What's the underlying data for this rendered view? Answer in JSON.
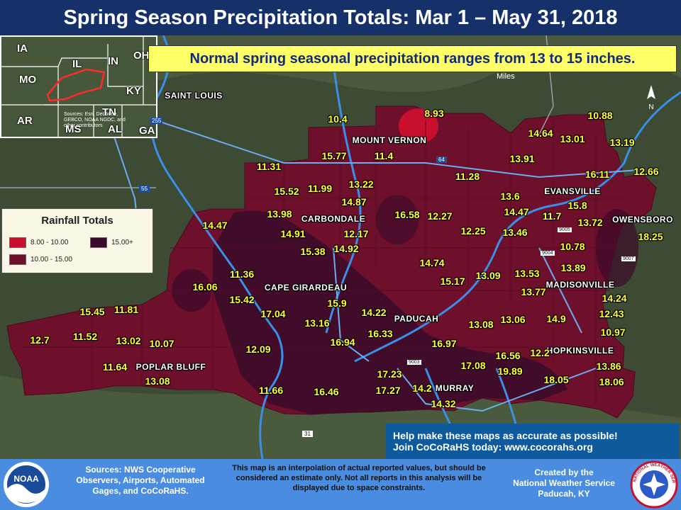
{
  "title": "Spring Season Precipitation Totals: Mar 1 – May 31, 2018",
  "normal_note": "Normal spring seasonal precipitation ranges from 13 to 15 inches.",
  "scale_label": "Miles",
  "inset": {
    "states": [
      "IA",
      "IL",
      "IN",
      "OH",
      "MO",
      "KY",
      "AR",
      "TN",
      "MS",
      "AL",
      "GA"
    ],
    "source": "Sources: Esri, DeLorme, GEBCO, NOAA NGDC, and other contributors"
  },
  "cities": [
    "SAINT LOUIS",
    "MOUNT VERNON",
    "CARBONDALE",
    "CAPE GIRARDEAU",
    "POPLAR BLUFF",
    "PADUCAH",
    "MURRAY",
    "EVANSVILLE",
    "OWENSBORO",
    "MADISONVILLE",
    "HOPKINSVILLE"
  ],
  "highway_shields": [
    "255",
    "55",
    "64",
    "9005",
    "9004",
    "9007",
    "9003",
    "31"
  ],
  "precip_values": [
    "8.93",
    "10.4",
    "10.88",
    "14.64",
    "13.01",
    "13.19",
    "15.77",
    "11.4",
    "13.91",
    "11.31",
    "11.28",
    "16.11",
    "12.66",
    "15.52",
    "11.99",
    "13.22",
    "13.6",
    "14.87",
    "15.8",
    "13.98",
    "16.58",
    "12.27",
    "14.47",
    "11.7",
    "14.47",
    "14.91",
    "12.17",
    "13.72",
    "18.25",
    "12.25",
    "13.46",
    "15.38",
    "14.92",
    "10.78",
    "14.74",
    "13.09",
    "13.53",
    "13.89",
    "11.36",
    "15.17",
    "16.06",
    "13.77",
    "15.42",
    "15.9",
    "14.24",
    "17.04",
    "14.22",
    "15.45",
    "11.81",
    "13.16",
    "13.06",
    "12.43",
    "16.33",
    "14.9",
    "10.97",
    "12.7",
    "11.52",
    "13.02",
    "10.07",
    "16.94",
    "16.97",
    "13.08",
    "12.09",
    "16.56",
    "12.2",
    "11.64",
    "13.08",
    "17.08",
    "19.89",
    "13.86",
    "17.23",
    "18.05",
    "18.06",
    "11.66",
    "16.46",
    "17.27",
    "14.2",
    "14.32"
  ],
  "legend": {
    "title": "Rainfall Totals",
    "items": [
      {
        "label": "8.00 - 10.00",
        "color": "#c8102e"
      },
      {
        "label": "15.00+",
        "color": "#3a0a2a"
      },
      {
        "label": "10.00 - 15.00",
        "color": "#6e0f2c"
      }
    ]
  },
  "cocorahs": {
    "line1": "Help make these maps as accurate as possible!",
    "line2": "Join CoCoRaHS today: www.cocorahs.org"
  },
  "footer": {
    "sources": "Sources: NWS Cooperative Observers, Airports, Automated Gages, and CoCoRaHS.",
    "note": "This map is an interpolation of actual reported values, but should be considered an estimate only. Not all reports in this analysis will be displayed due to space constraints.",
    "credit1": "Created by the",
    "credit2": "National Weather Service",
    "credit3": "Paducah, KY",
    "noaa_label": "NOAA",
    "nws_label": "NATIONAL WEATHER SERVICE"
  },
  "colors": {
    "header": "#16306a",
    "region_base": "#6e0f2c",
    "region_low": "#c8102e",
    "region_high": "#3a0a2a",
    "river": "#3a8fe6",
    "footer": "#4a8de0"
  }
}
